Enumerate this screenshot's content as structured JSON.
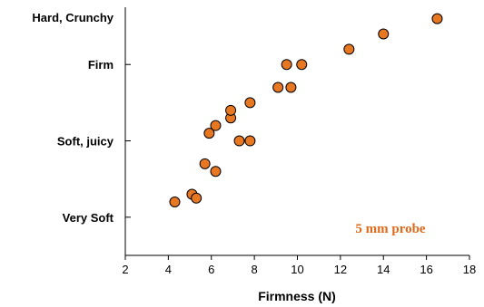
{
  "chart_data": {
    "type": "scatter",
    "xlabel": "Firmness (N)",
    "xlim": [
      2,
      18
    ],
    "x_ticks": [
      2,
      4,
      6,
      8,
      10,
      12,
      14,
      16,
      18
    ],
    "ylim": [
      0.5,
      3.75
    ],
    "y_categories": [
      {
        "label": "Very Soft",
        "value": 1
      },
      {
        "label": "Soft, juicy",
        "value": 2
      },
      {
        "label": "Firm",
        "value": 3
      },
      {
        "label": "Hard, Crunchy",
        "value": 3.85
      }
    ],
    "annotation": "5 mm probe",
    "colors": {
      "point": "#E87722",
      "annotation": "#E06A1B",
      "axis": "#000000"
    },
    "series": [
      {
        "x": [
          4.3,
          5.1,
          5.3,
          5.7,
          6.2,
          5.9,
          6.2,
          6.9,
          6.9,
          7.3,
          7.8,
          7.8,
          9.1,
          9.7,
          9.5,
          10.2,
          12.4,
          14.0,
          16.5
        ],
        "y": [
          1.2,
          1.3,
          1.25,
          1.7,
          1.6,
          2.1,
          2.2,
          2.3,
          2.4,
          2.0,
          2.0,
          2.5,
          2.7,
          2.7,
          3.0,
          3.0,
          3.2,
          3.4,
          3.6
        ]
      }
    ]
  }
}
